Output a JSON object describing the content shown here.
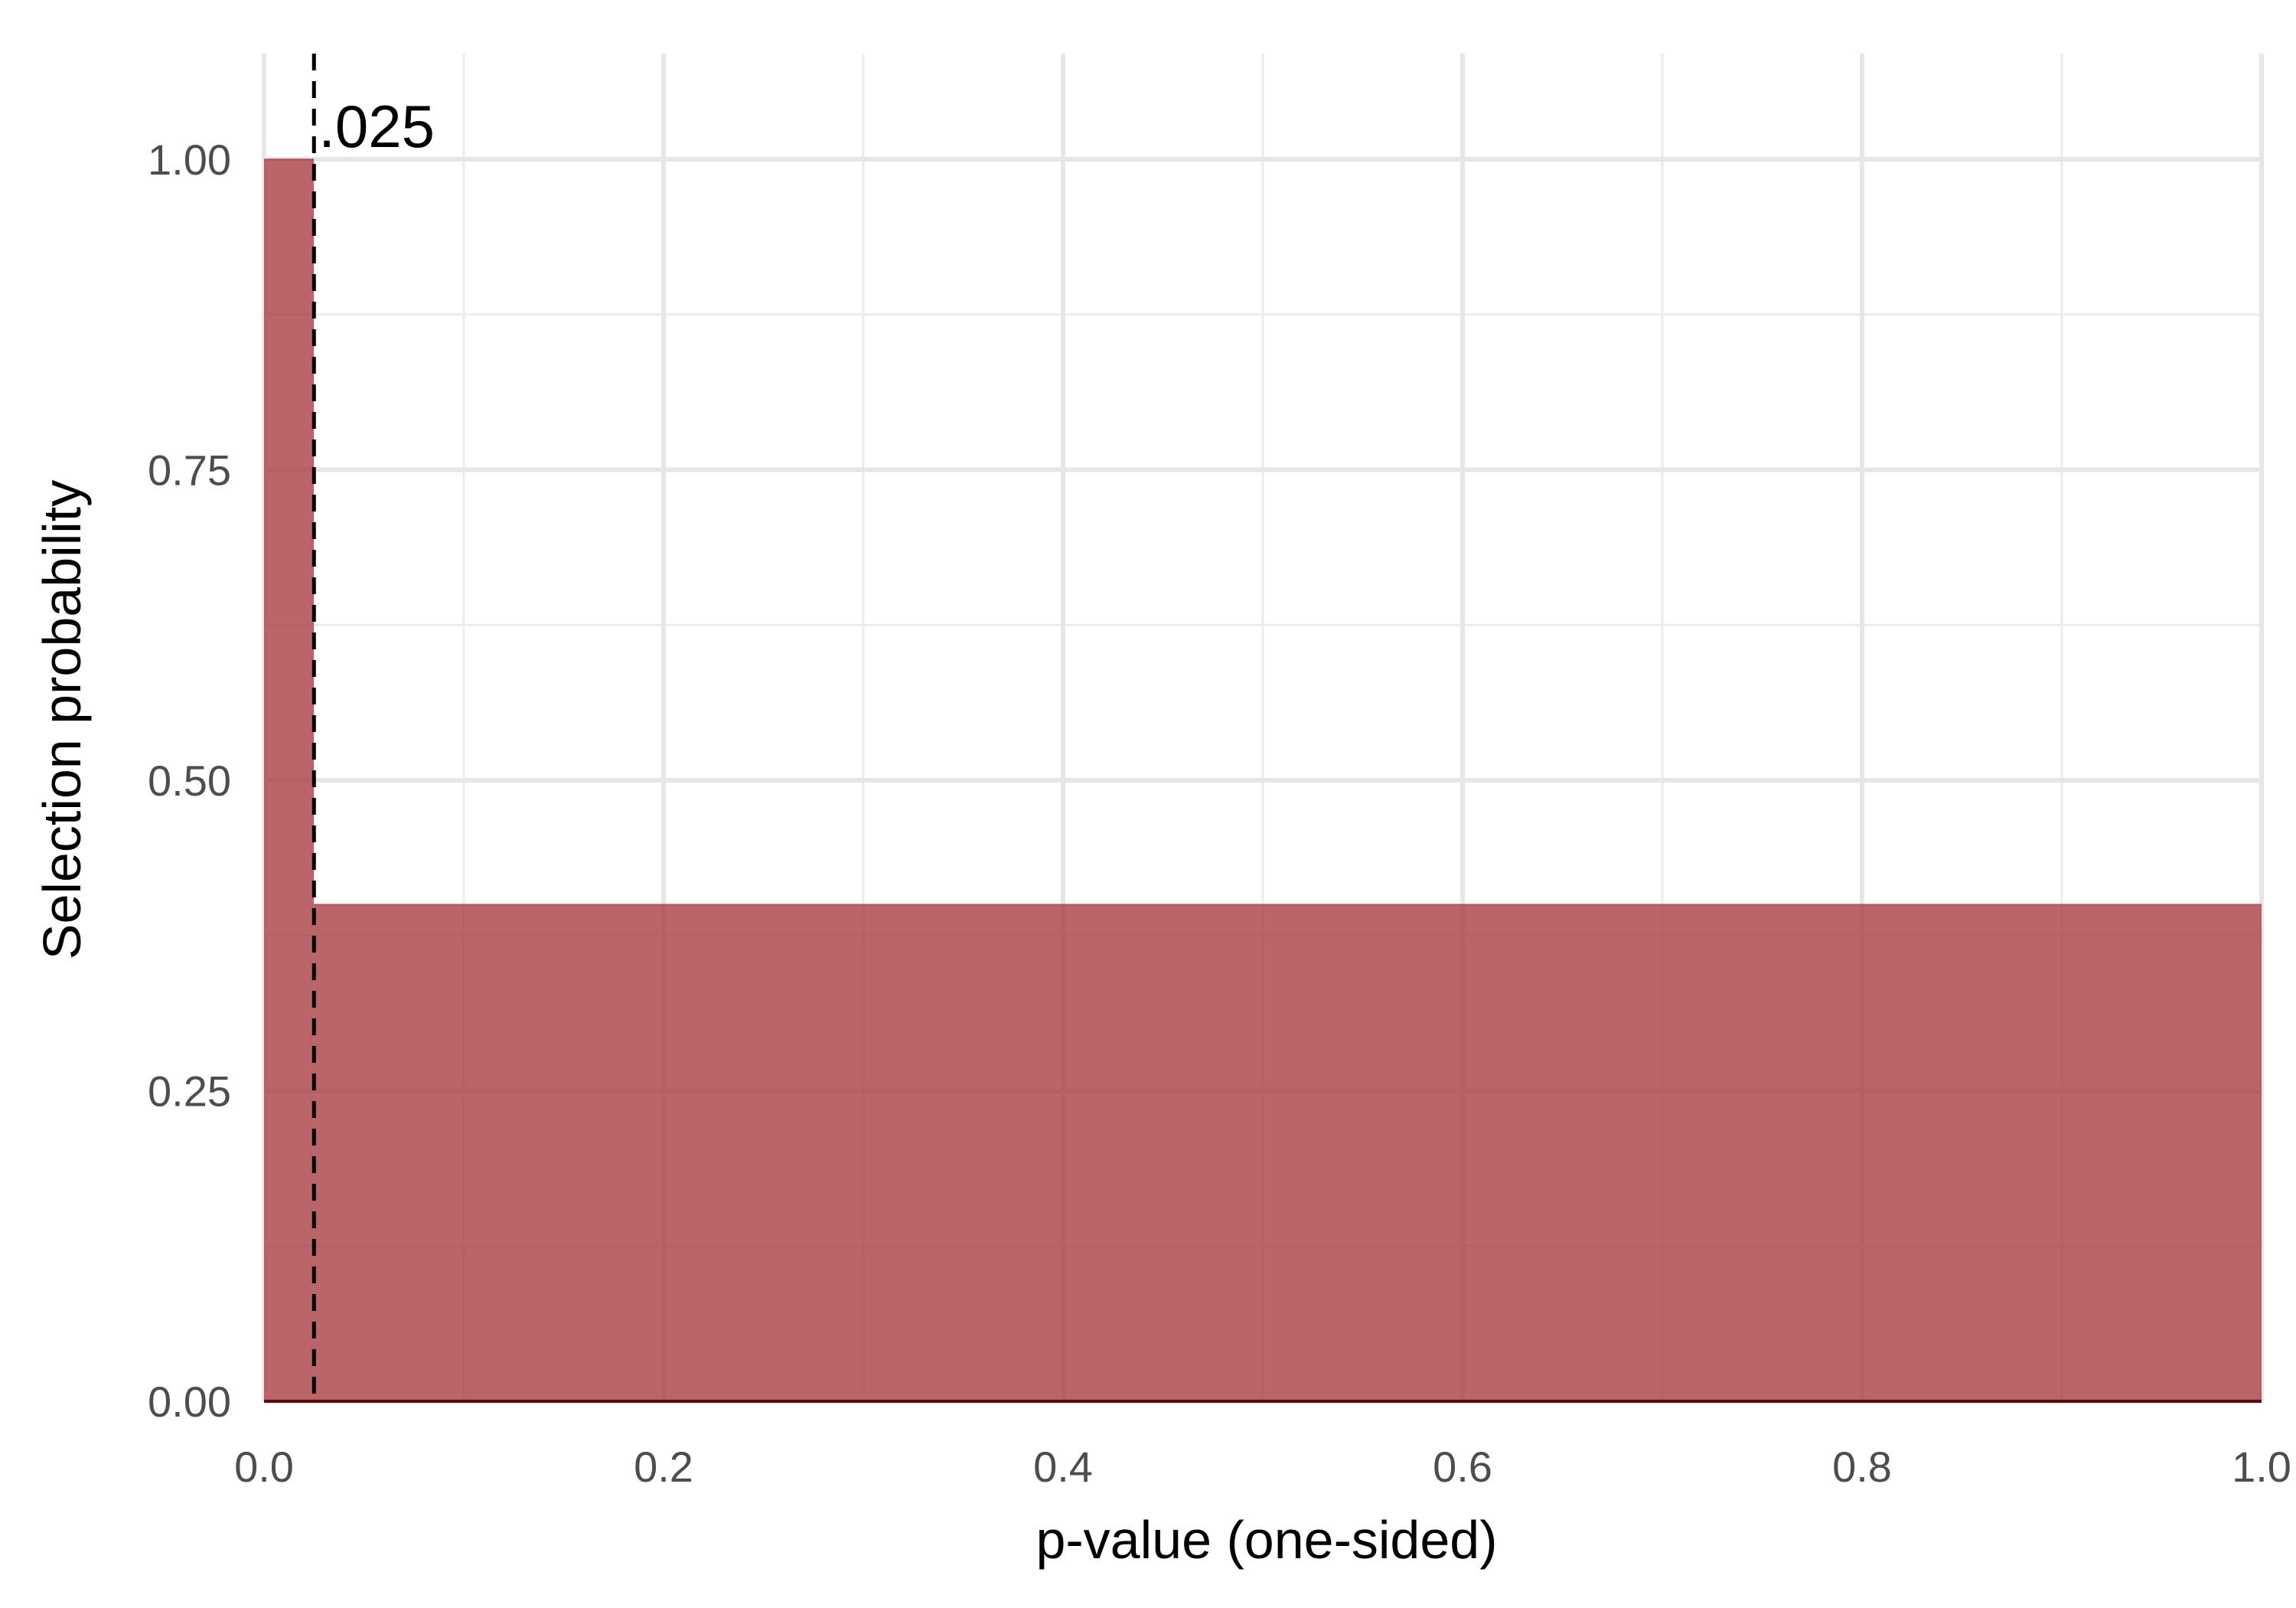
{
  "chart_data": {
    "type": "area",
    "xlabel": "p-value (one-sided)",
    "ylabel": "Selection probability",
    "xlim": [
      0,
      1
    ],
    "ylim": [
      0,
      1
    ],
    "x_ticks": [
      0.0,
      0.2,
      0.4,
      0.6,
      0.8,
      1.0
    ],
    "x_tick_labels": [
      "0.0",
      "0.2",
      "0.4",
      "0.6",
      "0.8",
      "1.0"
    ],
    "y_ticks": [
      0.0,
      0.25,
      0.5,
      0.75,
      1.0
    ],
    "y_tick_labels": [
      "0.00",
      "0.25",
      "0.50",
      "0.75",
      "1.00"
    ],
    "grid": true,
    "steps": [
      {
        "x_start": 0.0,
        "x_end": 0.025,
        "y": 1.0
      },
      {
        "x_start": 0.025,
        "x_end": 1.0,
        "y": 0.4
      }
    ],
    "fill_color": "#a63a3f",
    "threshold": {
      "x": 0.025,
      "label": ".025",
      "style": "dashed"
    }
  }
}
